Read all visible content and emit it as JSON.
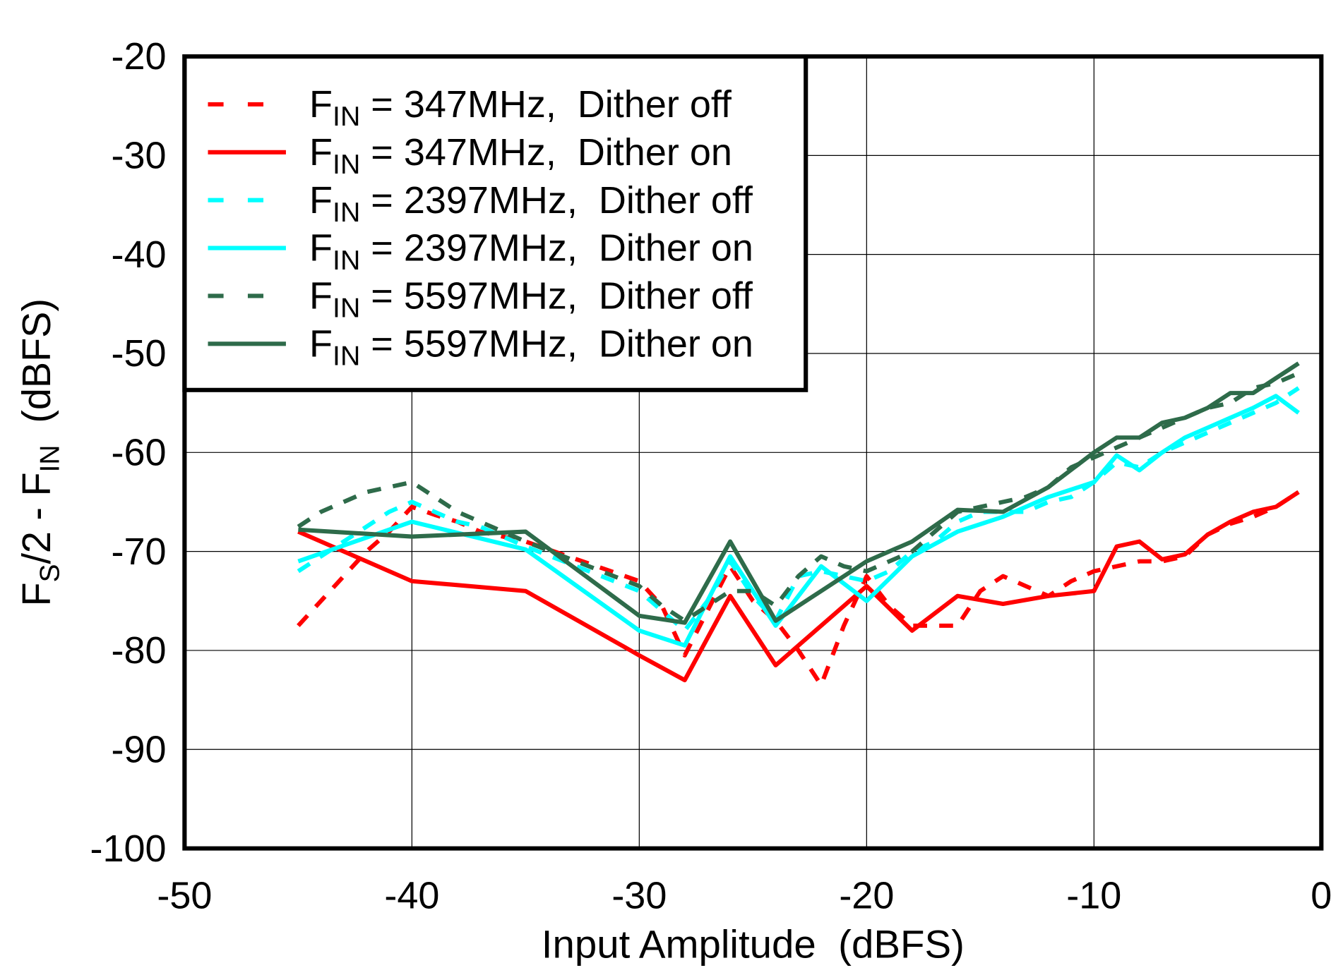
{
  "chart_data": {
    "type": "line",
    "title": "",
    "xlabel": "Input Amplitude  (dBFS)",
    "ylabel": {
      "main": "F",
      "sub1": "S",
      "mid": "/2 - F",
      "sub2": "IN",
      "tail": "  (dBFS)"
    },
    "xlim": [
      -50,
      0
    ],
    "ylim": [
      -100,
      -20
    ],
    "xticks": [
      -50,
      -40,
      -30,
      -20,
      -10,
      0
    ],
    "yticks": [
      -20,
      -30,
      -40,
      -50,
      -60,
      -70,
      -80,
      -90,
      -100
    ],
    "grid": true,
    "legend_placement": "top-left",
    "series": [
      {
        "name": {
          "f": "F",
          "sub": "IN",
          "rest": " = 347MHz,  Dither off"
        },
        "color": "#ff0000",
        "dash": true,
        "x": [
          -45,
          -44,
          -43,
          -42,
          -41,
          -40,
          -39,
          -38,
          -37,
          -36,
          -35,
          -30,
          -29,
          -28,
          -27,
          -26,
          -25,
          -24,
          -23,
          -22,
          -21,
          -20,
          -19,
          -18,
          -17,
          -16,
          -15,
          -14,
          -13,
          -12,
          -11,
          -10,
          -9,
          -8,
          -7,
          -6,
          -5,
          -4,
          -3,
          -2,
          -1
        ],
        "y": [
          -77.5,
          -75,
          -72.5,
          -70,
          -68,
          -65.5,
          -66.3,
          -67,
          -68,
          -68.5,
          -69,
          -73,
          -75.5,
          -80.5,
          -76,
          -71.5,
          -75,
          -77,
          -80,
          -83.5,
          -77.5,
          -72.5,
          -75.5,
          -77.5,
          -77.5,
          -77.5,
          -74,
          -72.5,
          -73.5,
          -74.5,
          -73,
          -72,
          -71.5,
          -71,
          -71,
          -70.5,
          -68.3,
          -67.2,
          -66.5,
          -65.5,
          -64
        ]
      },
      {
        "name": {
          "f": "F",
          "sub": "IN",
          "rest": " = 347MHz,  Dither on"
        },
        "color": "#ff0000",
        "dash": false,
        "x": [
          -45,
          -40,
          -35,
          -30,
          -28,
          -26,
          -24,
          -22,
          -20,
          -18,
          -16,
          -14,
          -12,
          -10,
          -9,
          -8,
          -7,
          -6,
          -5,
          -4,
          -3,
          -2,
          -1
        ],
        "y": [
          -68,
          -73,
          -74,
          -80.5,
          -83,
          -74.5,
          -81.5,
          -77.5,
          -73.5,
          -78,
          -74.5,
          -75.3,
          -74.5,
          -74,
          -69.5,
          -69,
          -70.8,
          -70.3,
          -68.3,
          -67,
          -66,
          -65.5,
          -64
        ]
      },
      {
        "name": {
          "f": "F",
          "sub": "IN",
          "rest": " = 2397MHz,  Dither off"
        },
        "color": "#00ffff",
        "dash": true,
        "x": [
          -45,
          -44,
          -43,
          -42,
          -41,
          -40,
          -39,
          -38,
          -37,
          -36,
          -35,
          -30,
          -29,
          -28,
          -27,
          -26,
          -25,
          -24,
          -23,
          -22,
          -21,
          -20,
          -19,
          -18,
          -17,
          -16,
          -15,
          -14,
          -13,
          -12,
          -11,
          -10,
          -9,
          -8,
          -7,
          -6,
          -5,
          -4,
          -3,
          -2,
          -1
        ],
        "y": [
          -72,
          -70.5,
          -69,
          -67.5,
          -66,
          -65,
          -66,
          -67,
          -67.5,
          -68.5,
          -69.5,
          -74,
          -76,
          -78,
          -75,
          -71,
          -74.5,
          -77,
          -72.5,
          -72,
          -72.5,
          -73,
          -72,
          -70,
          -69,
          -67,
          -66,
          -66,
          -66,
          -65,
          -64.5,
          -63,
          -61,
          -61.5,
          -60,
          -59,
          -58,
          -57,
          -56,
          -55,
          -53.5
        ]
      },
      {
        "name": {
          "f": "F",
          "sub": "IN",
          "rest": " = 2397MHz,  Dither on"
        },
        "color": "#00ffff",
        "dash": false,
        "x": [
          -45,
          -40,
          -35,
          -30,
          -28,
          -26,
          -24,
          -22,
          -20,
          -18,
          -16,
          -14,
          -12,
          -10,
          -9,
          -8,
          -7,
          -6,
          -5,
          -4,
          -3,
          -2,
          -1
        ],
        "y": [
          -71,
          -67,
          -69.8,
          -78,
          -79.5,
          -70.5,
          -77.5,
          -71.5,
          -75,
          -70.5,
          -68,
          -66.5,
          -64.5,
          -63,
          -60.3,
          -61.8,
          -60,
          -58.5,
          -57.5,
          -56.5,
          -55.5,
          -54.3,
          -56
        ]
      },
      {
        "name": {
          "f": "F",
          "sub": "IN",
          "rest": " = 5597MHz,  Dither off"
        },
        "color": "#2e6b4a",
        "dash": true,
        "x": [
          -45,
          -44,
          -43,
          -42,
          -41,
          -40,
          -39,
          -38,
          -37,
          -36,
          -35,
          -30,
          -29,
          -28,
          -27,
          -26,
          -25,
          -24,
          -23,
          -22,
          -21,
          -20,
          -19,
          -18,
          -17,
          -16,
          -15,
          -14,
          -13,
          -12,
          -11,
          -10,
          -9,
          -8,
          -7,
          -6,
          -5,
          -4,
          -3,
          -2,
          -1
        ],
        "y": [
          -67.5,
          -66,
          -65,
          -64,
          -63.5,
          -63,
          -64.5,
          -66,
          -67,
          -68,
          -69,
          -73.5,
          -75.5,
          -77,
          -75.5,
          -74,
          -74,
          -75.5,
          -72.5,
          -70.5,
          -71.5,
          -72,
          -71,
          -70,
          -68,
          -66,
          -65.5,
          -65,
          -64.5,
          -63.5,
          -61.5,
          -60.5,
          -59.5,
          -58.5,
          -57.5,
          -56.5,
          -55.5,
          -55,
          -53.5,
          -53,
          -52
        ]
      },
      {
        "name": {
          "f": "F",
          "sub": "IN",
          "rest": " = 5597MHz,  Dither on"
        },
        "color": "#2e6b4a",
        "dash": false,
        "x": [
          -45,
          -40,
          -35,
          -30,
          -28,
          -26,
          -24,
          -22,
          -20,
          -18,
          -16,
          -14,
          -12,
          -10,
          -9,
          -8,
          -7,
          -6,
          -5,
          -4,
          -3,
          -2,
          -1
        ],
        "y": [
          -67.8,
          -68.5,
          -68,
          -76.5,
          -77.2,
          -69,
          -77,
          -74,
          -71,
          -69,
          -65.8,
          -66,
          -63.5,
          -60,
          -58.5,
          -58.5,
          -57,
          -56.5,
          -55.5,
          -54,
          -54,
          -52.5,
          -51
        ]
      }
    ]
  }
}
